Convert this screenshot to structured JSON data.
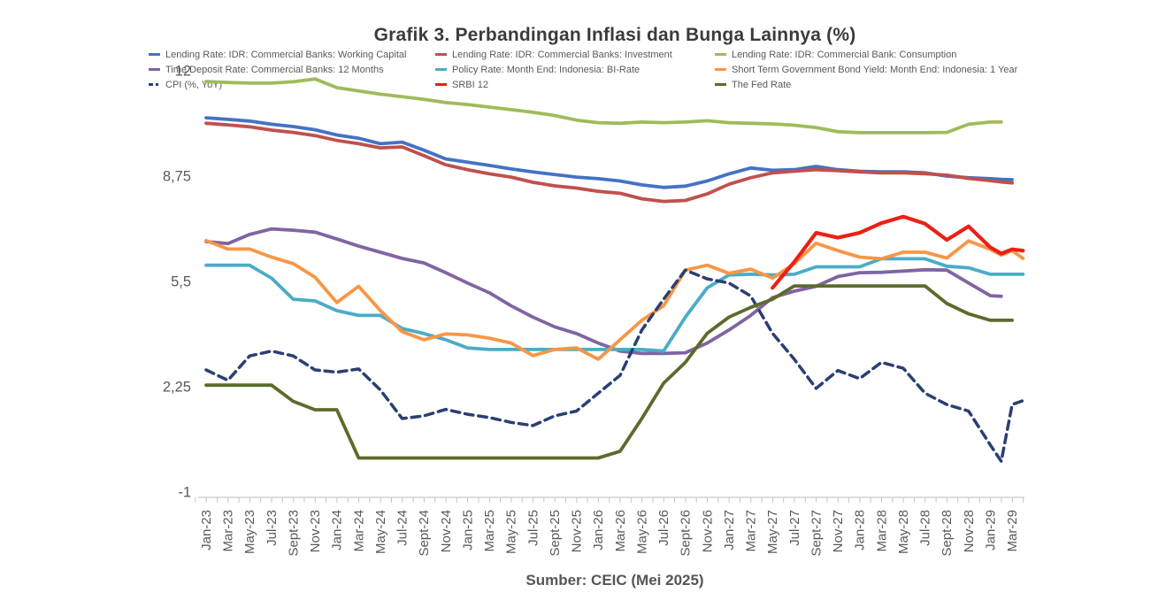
{
  "title": "Grafik 3. Perbandingan Inflasi dan Bunga Lainnya (%)",
  "source": "Sumber: CEIC (Mei 2025)",
  "colors": {
    "axis_line": "#C6C6C6",
    "axis_text": "#595959",
    "title_text": "#3B3B3B"
  },
  "chart_data": {
    "type": "line",
    "title": "Grafik 3. Perbandingan Inflasi dan Bunga Lainnya (%)",
    "xlabel": "",
    "ylabel": "",
    "ylim": [
      -1,
      12
    ],
    "grid": false,
    "legend_position": "top",
    "y_ticks": [
      {
        "label": "12",
        "value": 12
      },
      {
        "label": "8,75",
        "value": 8.75
      },
      {
        "label": "5,5",
        "value": 5.5
      },
      {
        "label": "2,25",
        "value": 2.25
      },
      {
        "label": "-1",
        "value": -1
      }
    ],
    "x_labels": [
      "Jan-23",
      "Mar-23",
      "May-23",
      "Jul-23",
      "Sept-23",
      "Nov-23",
      "Jan-24",
      "Mar-24",
      "May-24",
      "Jul-24",
      "Sept-24",
      "Nov-24",
      "Jan-25",
      "Mar-25",
      "May-25",
      "Jul-25",
      "Sept-25",
      "Nov-25",
      "Jan-26",
      "Mar-26",
      "May-26",
      "Jul-26",
      "Sept-26",
      "Nov-26",
      "Jan-27",
      "Mar-27",
      "May-27",
      "Jul-27",
      "Sept-27",
      "Nov-27",
      "Jan-28",
      "Mar-28",
      "May-28",
      "Jul-28",
      "Sept-28",
      "Nov-28",
      "Jan-29",
      "Mar-29"
    ],
    "month_positions": [
      0,
      2,
      4,
      6,
      8,
      10,
      12,
      14,
      16,
      18,
      20,
      22,
      24,
      26,
      28,
      30,
      32,
      34,
      36,
      38,
      40,
      42,
      44,
      46,
      48,
      50,
      52,
      54,
      56,
      58,
      60,
      62,
      64,
      66,
      68,
      70,
      72,
      73,
      74,
      75
    ],
    "series": [
      {
        "name": "Lending Rate: IDR: Commercial Banks: Working Capital",
        "color": "#4472C4",
        "dash": false,
        "width": 3.8,
        "values": [
          10.55,
          10.5,
          10.45,
          10.35,
          10.28,
          10.18,
          10.02,
          9.92,
          9.75,
          9.8,
          9.55,
          9.28,
          9.18,
          9.08,
          8.97,
          8.88,
          8.8,
          8.72,
          8.67,
          8.6,
          8.48,
          8.4,
          8.44,
          8.6,
          8.82,
          9.0,
          8.93,
          8.95,
          9.05,
          8.95,
          8.9,
          8.88,
          8.88,
          8.85,
          8.75,
          8.7,
          8.67,
          8.65,
          8.64,
          null
        ]
      },
      {
        "name": "Lending Rate: IDR: Commercial Banks: Investment",
        "color": "#C0504D",
        "dash": false,
        "width": 3.8,
        "values": [
          10.38,
          10.33,
          10.27,
          10.17,
          10.1,
          10.0,
          9.85,
          9.75,
          9.62,
          9.65,
          9.38,
          9.1,
          8.95,
          8.82,
          8.72,
          8.56,
          8.45,
          8.38,
          8.28,
          8.22,
          8.05,
          7.97,
          8.0,
          8.2,
          8.5,
          8.7,
          8.85,
          8.9,
          8.95,
          8.92,
          8.88,
          8.85,
          8.85,
          8.82,
          8.78,
          8.68,
          8.61,
          8.57,
          8.54,
          null
        ]
      },
      {
        "name": "Lending Rate: IDR: Commercial Bank: Consumption",
        "color": "#9FBB59",
        "dash": false,
        "width": 3.8,
        "values": [
          11.67,
          11.64,
          11.62,
          11.62,
          11.66,
          11.75,
          11.48,
          11.38,
          11.28,
          11.2,
          11.12,
          11.02,
          10.96,
          10.88,
          10.8,
          10.72,
          10.62,
          10.48,
          10.4,
          10.38,
          10.42,
          10.4,
          10.42,
          10.46,
          10.4,
          10.38,
          10.36,
          10.32,
          10.25,
          10.12,
          10.09,
          10.09,
          10.09,
          10.09,
          10.1,
          10.35,
          10.42,
          10.42,
          null,
          null
        ]
      },
      {
        "name": "Time Deposit Rate: Commercial Banks: 12 Months",
        "color": "#8064A2",
        "dash": false,
        "width": 3.8,
        "values": [
          6.73,
          6.67,
          6.95,
          7.12,
          7.08,
          7.02,
          6.81,
          6.59,
          6.4,
          6.21,
          6.07,
          5.77,
          5.45,
          5.15,
          4.75,
          4.4,
          4.1,
          3.89,
          3.6,
          3.35,
          3.28,
          3.28,
          3.3,
          3.6,
          4.0,
          4.45,
          5.0,
          5.2,
          5.35,
          5.65,
          5.77,
          5.78,
          5.82,
          5.86,
          5.85,
          5.45,
          5.06,
          5.04,
          null,
          null
        ]
      },
      {
        "name": "Policy Rate: Month End: Indonesia: BI-Rate",
        "color": "#4BACC6",
        "dash": false,
        "width": 3.8,
        "values": [
          6.0,
          6.0,
          6.0,
          5.6,
          4.95,
          4.9,
          4.6,
          4.45,
          4.45,
          4.05,
          3.89,
          3.7,
          3.45,
          3.4,
          3.4,
          3.4,
          3.4,
          3.4,
          3.4,
          3.4,
          3.4,
          3.35,
          4.4,
          5.3,
          5.7,
          5.72,
          5.7,
          5.72,
          5.95,
          5.95,
          5.95,
          6.2,
          6.2,
          6.2,
          5.97,
          5.92,
          5.72,
          5.72,
          5.72,
          5.72
        ]
      },
      {
        "name": "Short Term Government Bond Yield: Month End: Indonesia: 1 Year",
        "color": "#F79646",
        "dash": false,
        "width": 3.8,
        "values": [
          6.76,
          6.5,
          6.5,
          6.25,
          6.05,
          5.63,
          4.85,
          5.35,
          4.6,
          3.95,
          3.7,
          3.88,
          3.85,
          3.75,
          3.6,
          3.21,
          3.4,
          3.45,
          3.1,
          3.7,
          4.3,
          4.75,
          5.85,
          6.0,
          5.75,
          5.88,
          5.6,
          6.05,
          6.68,
          6.45,
          6.25,
          6.2,
          6.4,
          6.4,
          6.22,
          6.75,
          6.49,
          6.31,
          6.45,
          6.21
        ]
      },
      {
        "name": "CPI (%, YoY)",
        "color": "#2A3F72",
        "dash": true,
        "width": 3.5,
        "values": [
          2.77,
          2.45,
          3.2,
          3.35,
          3.2,
          2.77,
          2.7,
          2.8,
          2.15,
          1.27,
          1.35,
          1.55,
          1.4,
          1.3,
          1.15,
          1.05,
          1.35,
          1.5,
          2.05,
          2.6,
          4.0,
          4.95,
          5.85,
          5.58,
          5.45,
          5.05,
          3.9,
          3.1,
          2.2,
          2.75,
          2.5,
          3.0,
          2.82,
          2.05,
          1.7,
          1.5,
          0.45,
          -0.05,
          1.7,
          1.82
        ]
      },
      {
        "name": "SRBI 12",
        "color": "#EB2013",
        "dash": false,
        "width": 4.2,
        "values": [
          null,
          null,
          null,
          null,
          null,
          null,
          null,
          null,
          null,
          null,
          null,
          null,
          null,
          null,
          null,
          null,
          null,
          null,
          null,
          null,
          null,
          null,
          null,
          null,
          null,
          null,
          5.3,
          6.1,
          7.0,
          6.85,
          7.0,
          7.3,
          7.5,
          7.28,
          6.78,
          7.2,
          6.55,
          6.36,
          6.49,
          6.45
        ]
      },
      {
        "name": "The Fed Rate",
        "color": "#5C6B2B",
        "dash": false,
        "width": 3.8,
        "values": [
          2.3,
          2.3,
          2.3,
          2.3,
          1.8,
          1.54,
          1.54,
          0.05,
          0.05,
          0.05,
          0.05,
          0.05,
          0.05,
          0.05,
          0.05,
          0.05,
          0.05,
          0.05,
          0.05,
          0.26,
          1.27,
          2.36,
          3.0,
          3.9,
          4.4,
          4.7,
          4.95,
          5.36,
          5.36,
          5.36,
          5.36,
          5.36,
          5.36,
          5.36,
          4.82,
          4.5,
          4.3,
          4.3,
          4.3,
          null
        ]
      }
    ]
  }
}
